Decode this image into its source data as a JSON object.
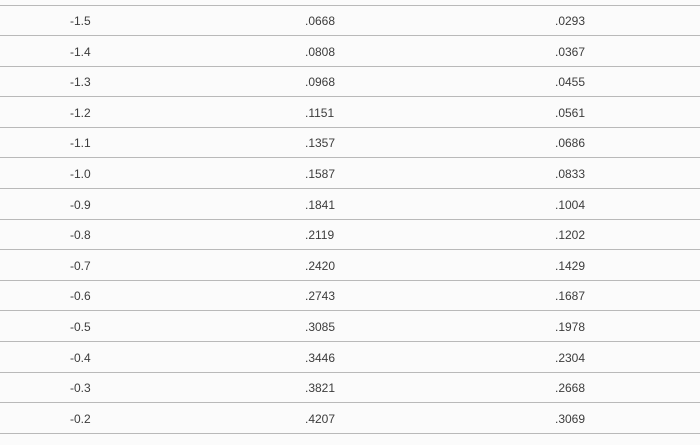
{
  "table": {
    "rows": [
      [
        "-1.5",
        ".0668",
        ".0293"
      ],
      [
        "-1.4",
        ".0808",
        ".0367"
      ],
      [
        "-1.3",
        ".0968",
        ".0455"
      ],
      [
        "-1.2",
        ".1151",
        ".0561"
      ],
      [
        "-1.1",
        ".1357",
        ".0686"
      ],
      [
        "-1.0",
        ".1587",
        ".0833"
      ],
      [
        "-0.9",
        ".1841",
        ".1004"
      ],
      [
        "-0.8",
        ".2119",
        ".1202"
      ],
      [
        "-0.7",
        ".2420",
        ".1429"
      ],
      [
        "-0.6",
        ".2743",
        ".1687"
      ],
      [
        "-0.5",
        ".3085",
        ".1978"
      ],
      [
        "-0.4",
        ".3446",
        ".2304"
      ],
      [
        "-0.3",
        ".3821",
        ".2668"
      ],
      [
        "-0.2",
        ".4207",
        ".3069"
      ]
    ]
  }
}
